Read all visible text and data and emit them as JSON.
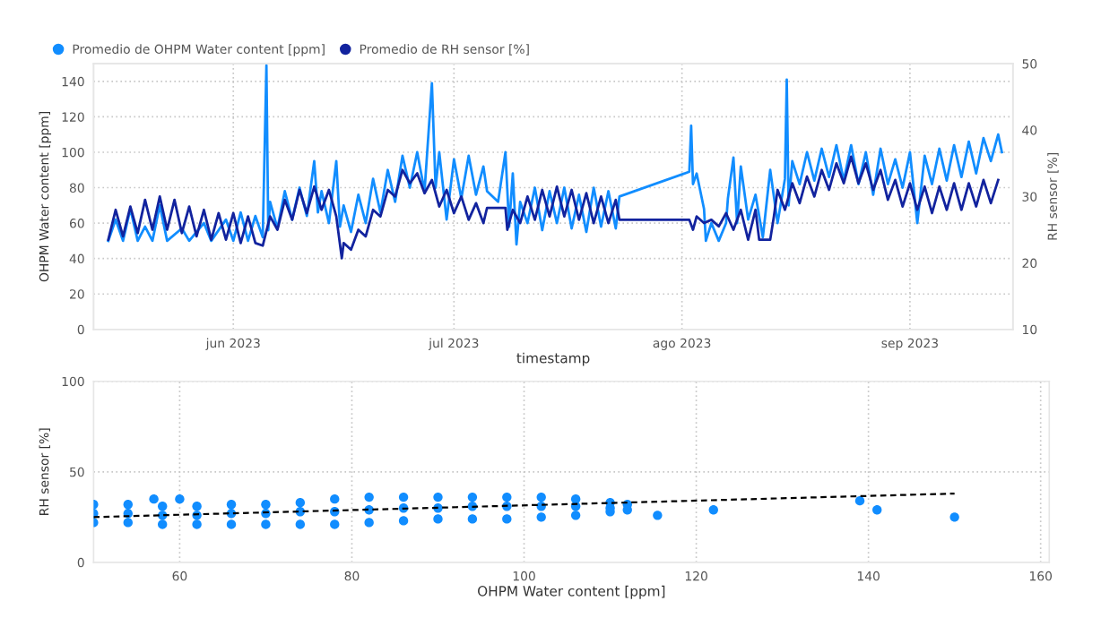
{
  "chart_data": [
    {
      "type": "line",
      "xlabel": "timestamp",
      "ylabel": "OHPM Water content [ppm]",
      "y2label": "RH sensor [%]",
      "legend": "top left",
      "grid": true,
      "line_style": "solid",
      "marker": "none",
      "xlim": [
        "2023-05-13",
        "2023-09-15"
      ],
      "xticks": [
        {
          "value": "2023-06-01",
          "label": "jun 2023"
        },
        {
          "value": "2023-07-01",
          "label": "jul 2023"
        },
        {
          "value": "2023-08-01",
          "label": "ago 2023"
        },
        {
          "value": "2023-09-01",
          "label": "sep 2023"
        }
      ],
      "ylim": [
        0,
        150
      ],
      "yticks": [
        0,
        20,
        40,
        60,
        80,
        100,
        120,
        140
      ],
      "y2lim": [
        10,
        50
      ],
      "y2ticks": [
        10,
        20,
        30,
        40,
        50
      ],
      "series": [
        {
          "name": "Promedio de OHPM Water content [ppm]",
          "color": "#118dff",
          "x": [
            "2023-05-15",
            "2023-05-16",
            "2023-05-17",
            "2023-05-18",
            "2023-05-19",
            "2023-05-20",
            "2023-05-21",
            "2023-05-22",
            "2023-05-23",
            "2023-05-25",
            "2023-05-26",
            "2023-05-28",
            "2023-05-29",
            "2023-05-31",
            "2023-06-01",
            "2023-06-02",
            "2023-06-03",
            "2023-06-04",
            "2023-06-05",
            "2023-06-05T12:00",
            "2023-06-05T18:00",
            "2023-06-06",
            "2023-06-07",
            "2023-06-08",
            "2023-06-09",
            "2023-06-10",
            "2023-06-11",
            "2023-06-12",
            "2023-06-12T12:00",
            "2023-06-13",
            "2023-06-14",
            "2023-06-15",
            "2023-06-15T12:00",
            "2023-06-16",
            "2023-06-17",
            "2023-06-18",
            "2023-06-19",
            "2023-06-20",
            "2023-06-21",
            "2023-06-22",
            "2023-06-23",
            "2023-06-24",
            "2023-06-25",
            "2023-06-26",
            "2023-06-27",
            "2023-06-28",
            "2023-06-28T12:00",
            "2023-06-29",
            "2023-06-30",
            "2023-07-01",
            "2023-07-02",
            "2023-07-03",
            "2023-07-04",
            "2023-07-05",
            "2023-07-05T12:00",
            "2023-07-07",
            "2023-07-08",
            "2023-07-08T12:00",
            "2023-07-09",
            "2023-07-09T12:00",
            "2023-07-10",
            "2023-07-11",
            "2023-07-12",
            "2023-07-13",
            "2023-07-14",
            "2023-07-15",
            "2023-07-16",
            "2023-07-17",
            "2023-07-18",
            "2023-07-19",
            "2023-07-20",
            "2023-07-21",
            "2023-07-22",
            "2023-07-23",
            "2023-07-23T12:00",
            "2023-08-02",
            "2023-08-02T06:00",
            "2023-08-02T12:00",
            "2023-08-03",
            "2023-08-04",
            "2023-08-04T06:00",
            "2023-08-05",
            "2023-08-06",
            "2023-08-07",
            "2023-08-07T06:00",
            "2023-08-08",
            "2023-08-08T12:00",
            "2023-08-09",
            "2023-08-10",
            "2023-08-11",
            "2023-08-12",
            "2023-08-13",
            "2023-08-14",
            "2023-08-15",
            "2023-08-15T06:00",
            "2023-08-15T12:00",
            "2023-08-16",
            "2023-08-17",
            "2023-08-18",
            "2023-08-19",
            "2023-08-20",
            "2023-08-21",
            "2023-08-22",
            "2023-08-23",
            "2023-08-24",
            "2023-08-25",
            "2023-08-26",
            "2023-08-27",
            "2023-08-28",
            "2023-08-29",
            "2023-08-30",
            "2023-08-31",
            "2023-09-01",
            "2023-09-02",
            "2023-09-03",
            "2023-09-04",
            "2023-09-05",
            "2023-09-06",
            "2023-09-07",
            "2023-09-08",
            "2023-09-09",
            "2023-09-10",
            "2023-09-11",
            "2023-09-12",
            "2023-09-13",
            "2023-09-13T12:00"
          ],
          "values": [
            50,
            62,
            50,
            68,
            50,
            58,
            50,
            70,
            50,
            57,
            50,
            60,
            50,
            62,
            50,
            66,
            50,
            64,
            52,
            149,
            56,
            72,
            57,
            78,
            62,
            80,
            64,
            95,
            66,
            78,
            60,
            95,
            58,
            70,
            55,
            76,
            60,
            85,
            66,
            90,
            72,
            98,
            80,
            100,
            78,
            139,
            80,
            100,
            62,
            96,
            74,
            98,
            76,
            92,
            78,
            72,
            100,
            58,
            88,
            48,
            72,
            60,
            80,
            56,
            78,
            60,
            80,
            57,
            76,
            55,
            80,
            58,
            78,
            57,
            75,
            89,
            115,
            82,
            88,
            68,
            50,
            60,
            50,
            60,
            74,
            97,
            60,
            92,
            62,
            76,
            52,
            90,
            60,
            85,
            141,
            70,
            95,
            82,
            100,
            84,
            102,
            86,
            104,
            84,
            104,
            82,
            100,
            76,
            102,
            82,
            96,
            80,
            100,
            60,
            98,
            82,
            102,
            84,
            104,
            86,
            106,
            88,
            108,
            95,
            110,
            100
          ]
        },
        {
          "name": "Promedio de RH sensor [%]",
          "color": "#12239e",
          "axis": "y2",
          "x": [
            "2023-05-15",
            "2023-05-16",
            "2023-05-17",
            "2023-05-18",
            "2023-05-19",
            "2023-05-20",
            "2023-05-21",
            "2023-05-22",
            "2023-05-23",
            "2023-05-24",
            "2023-05-25",
            "2023-05-26",
            "2023-05-27",
            "2023-05-28",
            "2023-05-29",
            "2023-05-30",
            "2023-05-31",
            "2023-06-01",
            "2023-06-02",
            "2023-06-03",
            "2023-06-04",
            "2023-06-05",
            "2023-06-06",
            "2023-06-07",
            "2023-06-08",
            "2023-06-09",
            "2023-06-10",
            "2023-06-11",
            "2023-06-12",
            "2023-06-13",
            "2023-06-14",
            "2023-06-15",
            "2023-06-15T18:00",
            "2023-06-16",
            "2023-06-17",
            "2023-06-18",
            "2023-06-19",
            "2023-06-20",
            "2023-06-21",
            "2023-06-22",
            "2023-06-23",
            "2023-06-24",
            "2023-06-25",
            "2023-06-26",
            "2023-06-27",
            "2023-06-28",
            "2023-06-29",
            "2023-06-30",
            "2023-07-01",
            "2023-07-02",
            "2023-07-03",
            "2023-07-04",
            "2023-07-05",
            "2023-07-05T12:00",
            "2023-07-08",
            "2023-07-08T06:00",
            "2023-07-09",
            "2023-07-10",
            "2023-07-11",
            "2023-07-12",
            "2023-07-13",
            "2023-07-14",
            "2023-07-15",
            "2023-07-16",
            "2023-07-17",
            "2023-07-18",
            "2023-07-19",
            "2023-07-20",
            "2023-07-21",
            "2023-07-22",
            "2023-07-23",
            "2023-07-23T12:00",
            "2023-08-02",
            "2023-08-02T12:00",
            "2023-08-03",
            "2023-08-04",
            "2023-08-05",
            "2023-08-06",
            "2023-08-07",
            "2023-08-08",
            "2023-08-09",
            "2023-08-10",
            "2023-08-11",
            "2023-08-11T12:00",
            "2023-08-13",
            "2023-08-13T12:00",
            "2023-08-14",
            "2023-08-15",
            "2023-08-16",
            "2023-08-17",
            "2023-08-18",
            "2023-08-19",
            "2023-08-20",
            "2023-08-21",
            "2023-08-22",
            "2023-08-23",
            "2023-08-24",
            "2023-08-25",
            "2023-08-26",
            "2023-08-27",
            "2023-08-28",
            "2023-08-29",
            "2023-08-30",
            "2023-08-31",
            "2023-09-01",
            "2023-09-02",
            "2023-09-03",
            "2023-09-04",
            "2023-09-05",
            "2023-09-06",
            "2023-09-07",
            "2023-09-08",
            "2023-09-09",
            "2023-09-10",
            "2023-09-11",
            "2023-09-12",
            "2023-09-13"
          ],
          "values": [
            23.5,
            28,
            24,
            28.5,
            24.5,
            29.5,
            25,
            30,
            25,
            29.5,
            24.5,
            28.5,
            24,
            28,
            23.5,
            27.5,
            23.5,
            27.5,
            23,
            27,
            23,
            22.6,
            27,
            25,
            29.5,
            26.5,
            31,
            27.5,
            31.5,
            28,
            31,
            27,
            20.7,
            23,
            22,
            25,
            24,
            28,
            27,
            31,
            30,
            34,
            32,
            33.5,
            30.5,
            32.5,
            28.5,
            31,
            27.5,
            30,
            26.5,
            29,
            26,
            28.3,
            28.3,
            25,
            28,
            26,
            30,
            26.5,
            31,
            27,
            31.5,
            27,
            31,
            26.5,
            30.5,
            26,
            30,
            26,
            29.5,
            26.5,
            26.5,
            25,
            27,
            26,
            26.5,
            25.5,
            27.5,
            25,
            28,
            23.5,
            28,
            23.5,
            23.5,
            27,
            31,
            28,
            32,
            29,
            33,
            30,
            34,
            31,
            35,
            32,
            36,
            32,
            35,
            31,
            34,
            29.5,
            32.5,
            28.5,
            32,
            28,
            31.5,
            27.5,
            31.5,
            28,
            32,
            28,
            32,
            28.5,
            32.5,
            29,
            32.5
          ]
        }
      ]
    },
    {
      "type": "scatter",
      "xlabel": "OHPM Water content [ppm]",
      "ylabel": "RH sensor [%]",
      "grid": true,
      "xlim": [
        50,
        161
      ],
      "xticks": [
        60,
        80,
        100,
        120,
        140,
        160
      ],
      "ylim": [
        0,
        100
      ],
      "yticks": [
        0,
        50,
        100
      ],
      "series": [
        {
          "color": "#118dff",
          "marker": "circle",
          "x": [
            50,
            50,
            50,
            54,
            54,
            54,
            58,
            58,
            58,
            62,
            62,
            62,
            66,
            66,
            66,
            70,
            70,
            70,
            74,
            74,
            74,
            78,
            78,
            78,
            82,
            82,
            82,
            86,
            86,
            86,
            90,
            90,
            90,
            94,
            94,
            94,
            98,
            98,
            98,
            102,
            102,
            102,
            106,
            106,
            106,
            110,
            110,
            110,
            112,
            112,
            57,
            60,
            115.5,
            122,
            139,
            141,
            150
          ],
          "values": [
            22,
            27,
            32,
            22,
            27,
            32,
            21,
            26,
            31,
            21,
            26,
            31,
            21,
            27,
            32,
            21,
            27,
            32,
            21,
            28,
            33,
            21,
            28,
            35,
            22,
            29,
            36,
            23,
            30,
            36,
            24,
            30,
            36,
            24,
            31,
            36,
            24,
            31,
            36,
            25,
            31,
            36,
            26,
            31,
            35,
            28,
            30,
            33,
            29,
            32,
            35,
            35,
            26,
            29,
            34,
            29,
            25
          ]
        },
        {
          "type": "line",
          "color": "#000000",
          "line_style": "dashed",
          "x": [
            50,
            150
          ],
          "values": [
            25,
            38
          ]
        }
      ]
    }
  ]
}
